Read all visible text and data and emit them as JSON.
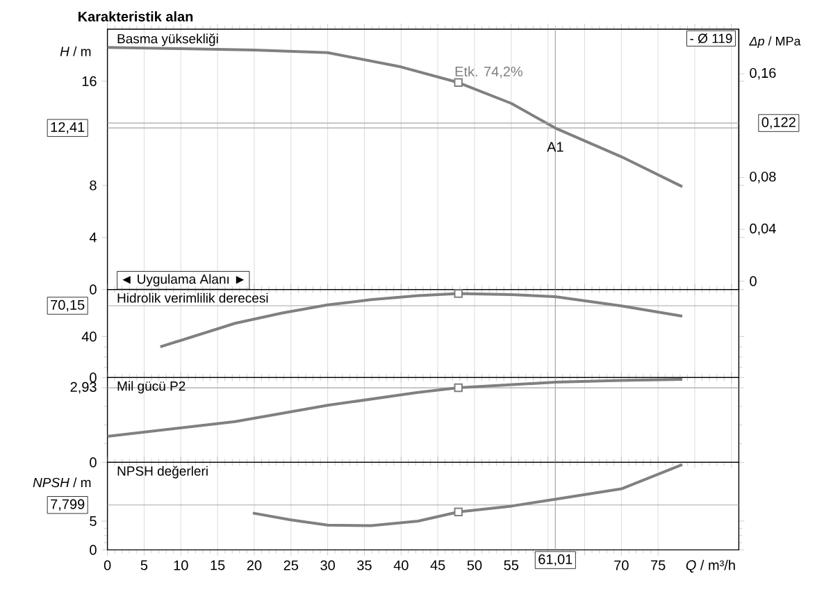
{
  "chart_data": [
    {
      "type": "line",
      "title": "Karakteristik alan",
      "ylabel": "*H* / m",
      "y2label": "*Δp* / MPa",
      "x": [
        0,
        10,
        20,
        30,
        40,
        47.8,
        55,
        61.01,
        70,
        78.3
      ],
      "series": [
        {
          "color": "#808080",
          "values": [
            18.6,
            18.5,
            18.4,
            18.2,
            17.1,
            15.9,
            14.3,
            12.4,
            10.2,
            7.9
          ]
        },
        {
          "type": "scatter",
          "marker": "square",
          "color": "#808080",
          "values": [
            null,
            null,
            null,
            null,
            null,
            15.9,
            null,
            null,
            null,
            null
          ]
        }
      ],
      "xlim": [
        0,
        86
      ],
      "ylim": [
        0,
        20
      ],
      "yticks": [
        0,
        4,
        8,
        16
      ],
      "y2lim": [
        -0.0064,
        0.1944
      ],
      "y2ticks": [
        0,
        {
          "value": 0.04,
          "label": "0,04"
        },
        {
          "value": 0.08,
          "label": "0,08"
        },
        {
          "value": 0.16,
          "label": "0,16"
        }
      ],
      "tick_labels": "y",
      "grid": "x",
      "ref_lines": [
        {
          "axis": "y",
          "value": 12.41,
          "label": "12,41"
        },
        {
          "axis": "y2",
          "value": 0.122,
          "label": "0,122"
        },
        {
          "axis": "x",
          "value": 61.01
        }
      ],
      "annotations": [
        "Basma yüksekliği",
        "- Ø 119",
        "◄ Uygulama Alanı ►",
        {
          "text": "Etk. 74,2%",
          "x": 47.8,
          "y": 15.9
        },
        {
          "text": "A1",
          "x": 61.01,
          "y": 12.41
        }
      ]
    },
    {
      "type": "line",
      "x": [
        7.2,
        17.4,
        23.8,
        30,
        35.9,
        42.3,
        47.8,
        55,
        61.01,
        70,
        78.3
      ],
      "series": [
        {
          "color": "#808080",
          "values": [
            30,
            53,
            63,
            71,
            76,
            80,
            82,
            81,
            79,
            70,
            60
          ]
        },
        {
          "type": "scatter",
          "marker": "square",
          "color": "#808080",
          "values": [
            null,
            null,
            null,
            null,
            null,
            null,
            82,
            null,
            null,
            null,
            null
          ]
        }
      ],
      "xlim": [
        0,
        86
      ],
      "ylim": [
        0,
        86
      ],
      "yticks": [
        0,
        40
      ],
      "tick_labels": "y",
      "grid": "x",
      "ref_lines": [
        {
          "axis": "y",
          "value": 70.15,
          "label": "70,15"
        },
        {
          "axis": "x",
          "value": 61.01
        }
      ],
      "annotations": [
        "Hidrolik verimlilik derecesi"
      ]
    },
    {
      "type": "line",
      "x": [
        0,
        17.4,
        30,
        42.3,
        47.8,
        61.01,
        70,
        78.3
      ],
      "series": [
        {
          "color": "#808080",
          "values": [
            1.02,
            1.6,
            2.24,
            2.75,
            2.93,
            3.15,
            3.22,
            3.26
          ]
        },
        {
          "type": "scatter",
          "marker": "square",
          "color": "#808080",
          "values": [
            null,
            null,
            null,
            null,
            2.93,
            null,
            null,
            null
          ]
        }
      ],
      "xlim": [
        0,
        86
      ],
      "ylim": [
        0,
        3.33
      ],
      "yticks": [
        0,
        {
          "value": 2.93,
          "label": "2,93"
        }
      ],
      "tick_labels": "y",
      "grid": "x",
      "ref_lines": [
        {
          "axis": "y",
          "value": 2.93
        },
        {
          "axis": "x",
          "value": 61.01
        }
      ],
      "annotations": [
        "Mil gücü P2"
      ]
    },
    {
      "type": "line",
      "ylabel": "*NPSH* / m",
      "xlabel": "*Q* / m³/h",
      "x": [
        19.8,
        25,
        30,
        35.9,
        42.3,
        47.8,
        55,
        61.01,
        70,
        78.3
      ],
      "series": [
        {
          "color": "#808080",
          "values": [
            6.4,
            5.2,
            4.3,
            4.2,
            5.0,
            6.6,
            7.6,
            8.8,
            10.6,
            14.8
          ]
        },
        {
          "type": "scatter",
          "marker": "square",
          "color": "#808080",
          "values": [
            null,
            null,
            null,
            null,
            null,
            6.6,
            null,
            null,
            null,
            null
          ]
        }
      ],
      "xlim": [
        0,
        86
      ],
      "xticks": [
        0,
        5,
        10,
        15,
        20,
        25,
        30,
        35,
        40,
        45,
        50,
        55,
        {
          "value": 60,
          "label": null
        },
        {
          "value": 65,
          "label": null
        },
        70,
        75
      ],
      "ylim": [
        0,
        15.2
      ],
      "yticks": [
        0,
        5
      ],
      "grid": "x",
      "ref_lines": [
        {
          "axis": "y",
          "value": 7.799,
          "label": "7,799"
        },
        {
          "axis": "x",
          "value": 61.01,
          "label": "61,01"
        }
      ],
      "annotations": [
        "NPSH değerleri"
      ]
    }
  ]
}
